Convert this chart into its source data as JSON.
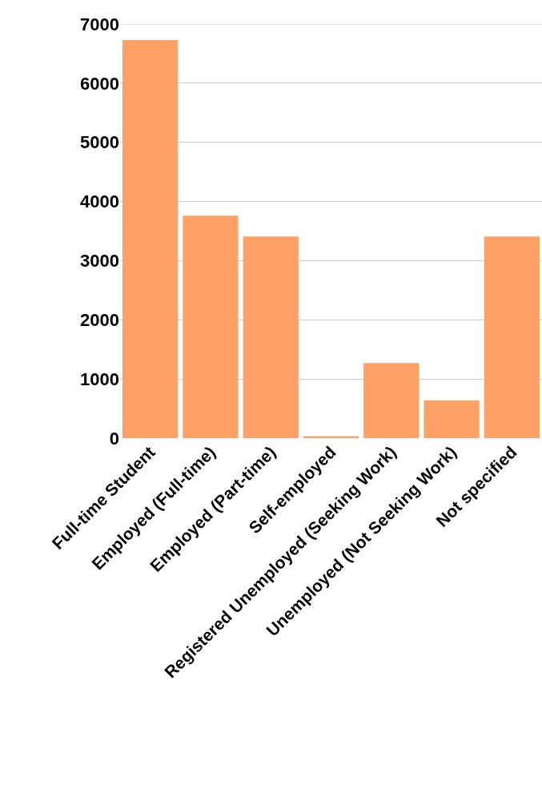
{
  "chart_data": {
    "type": "bar",
    "categories": [
      "Full-time Student",
      "Employed (Full-time)",
      "Employed (Part-time)",
      "Self-employed",
      "Registered Unemployed (Seeking Work)",
      "Unemployed (Not Seeking Work)",
      "Not specified"
    ],
    "values": [
      6730,
      3760,
      3410,
      30,
      1270,
      640,
      3410
    ],
    "color": "#ffa066",
    "ylim": [
      0,
      7000
    ],
    "yticks": [
      0,
      1000,
      2000,
      3000,
      4000,
      5000,
      6000,
      7000
    ],
    "grid": "y"
  }
}
